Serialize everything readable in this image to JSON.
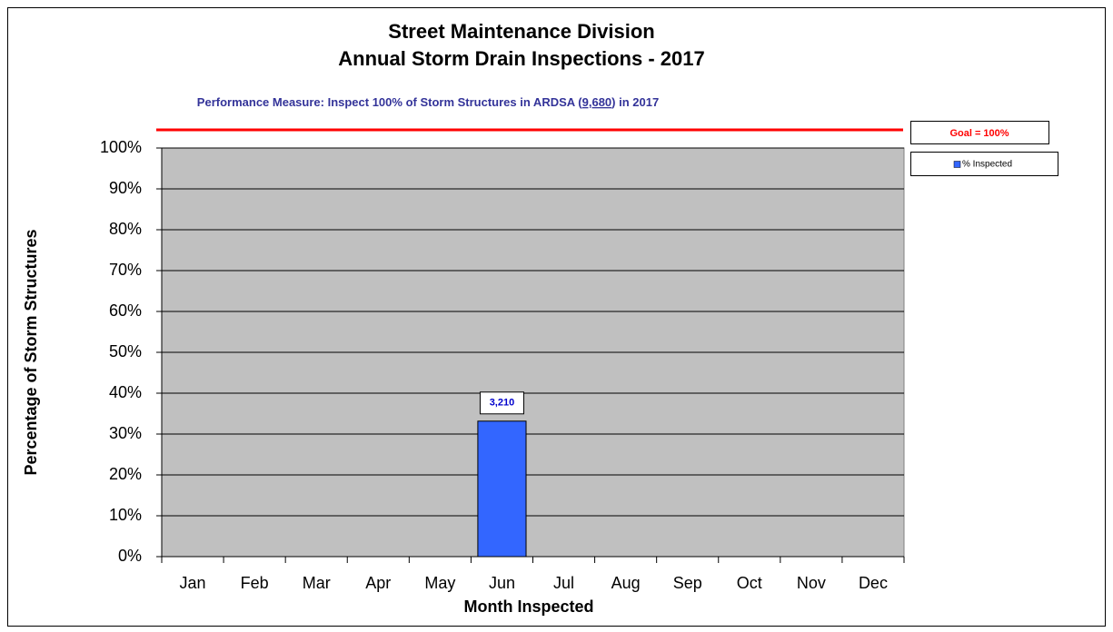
{
  "chart_data": {
    "type": "bar",
    "title": [
      "Street Maintenance Division",
      "Annual Storm Drain Inspections - 2017"
    ],
    "subtitle": [
      "Performance Measure:  Inspect 100% of Storm Structures in ARDSA (",
      "9,680",
      ") in 2017"
    ],
    "goal_label": "Goal = 100%",
    "x_label": "Month Inspected",
    "y_label": "Percentage of Storm Structures",
    "categories": [
      "Jan",
      "Feb",
      "Mar",
      "Apr",
      "May",
      "Jun",
      "Jul",
      "Aug",
      "Sep",
      "Oct",
      "Nov",
      "Dec"
    ],
    "series": [
      {
        "name": "% Inspected",
        "color": "#3366ff",
        "values": [
          null,
          null,
          null,
          null,
          null,
          33.16,
          null,
          null,
          null,
          null,
          null,
          null
        ],
        "value_labels": [
          null,
          null,
          null,
          null,
          null,
          "3,210",
          null,
          null,
          null,
          null,
          null,
          null
        ]
      }
    ],
    "ylim": [
      0,
      100
    ],
    "yticks": [
      {
        "value": 0,
        "label": "0%"
      },
      {
        "value": 10,
        "label": "10%"
      },
      {
        "value": 20,
        "label": "20%"
      },
      {
        "value": 30,
        "label": "30%"
      },
      {
        "value": 40,
        "label": "40%"
      },
      {
        "value": 50,
        "label": "50%"
      },
      {
        "value": 60,
        "label": "60%"
      },
      {
        "value": 70,
        "label": "70%"
      },
      {
        "value": 80,
        "label": "80%"
      },
      {
        "value": 90,
        "label": "90%"
      },
      {
        "value": 100,
        "label": "100%"
      }
    ],
    "grid": true,
    "plot_background": "#c0c0c0",
    "legend": "right"
  }
}
